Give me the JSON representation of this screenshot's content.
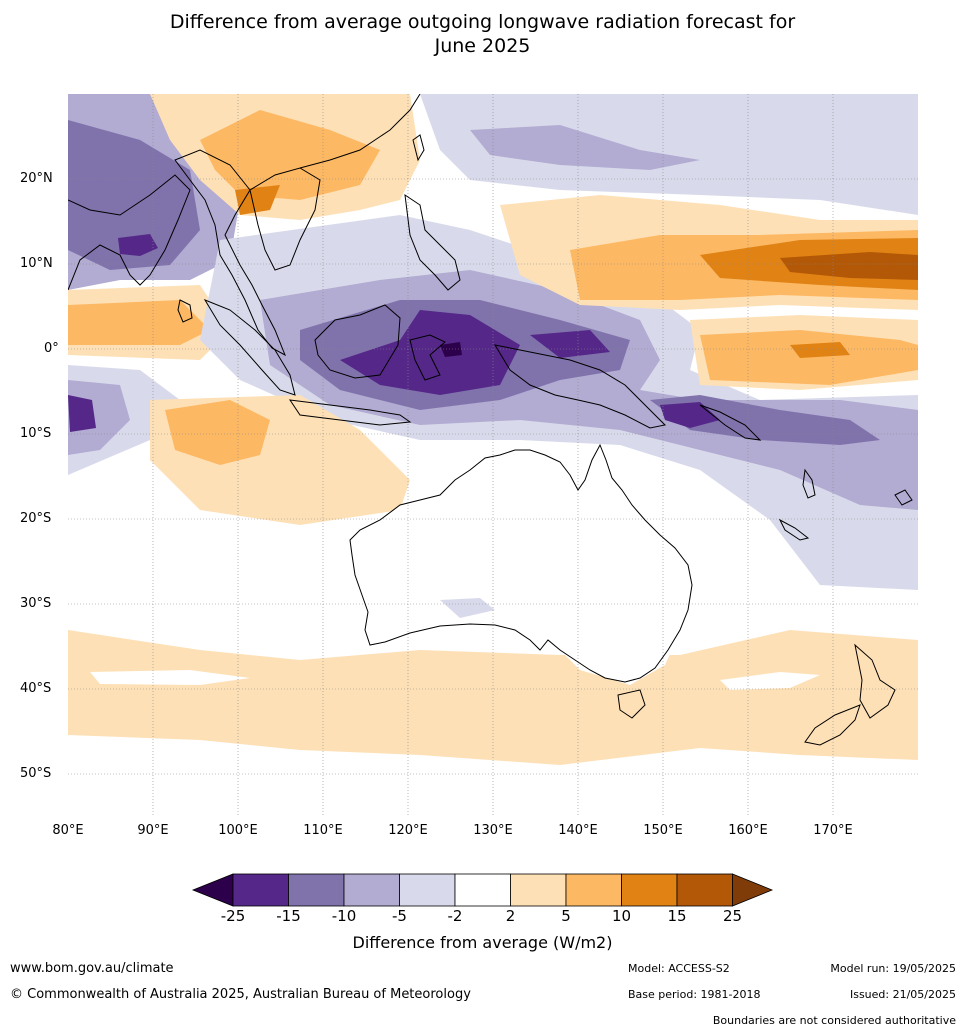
{
  "title_line1": "Difference from average outgoing longwave radiation forecast for",
  "title_line2": "June 2025",
  "lat_labels": [
    "20°N",
    "10°N",
    "0°",
    "10°S",
    "20°S",
    "30°S",
    "40°S",
    "50°S"
  ],
  "lon_labels": [
    "80°E",
    "90°E",
    "100°E",
    "110°E",
    "120°E",
    "130°E",
    "140°E",
    "150°E",
    "160°E",
    "170°E"
  ],
  "colorbar": {
    "ticks": [
      "-25",
      "-15",
      "-10",
      "-5",
      "-2",
      "2",
      "5",
      "10",
      "15",
      "25"
    ],
    "colors": [
      "#2d004b",
      "#542788",
      "#8073ac",
      "#b2abd2",
      "#d8daeb",
      "#ffffff",
      "#fee0b6",
      "#fdb863",
      "#e08214",
      "#b35806",
      "#7f3b08"
    ],
    "label": "Difference from average (W/m2)"
  },
  "footer": {
    "website": "www.bom.gov.au/climate",
    "copyright": "© Commonwealth of Australia 2025, Australian Bureau of Meteorology",
    "model": "Model: ACCESS-S2",
    "base_period": "Base period: 1981-2018",
    "model_run": "Model run: 19/05/2025",
    "issued": "Issued: 21/05/2025",
    "disclaimer": "Boundaries are not considered authoritative"
  }
}
